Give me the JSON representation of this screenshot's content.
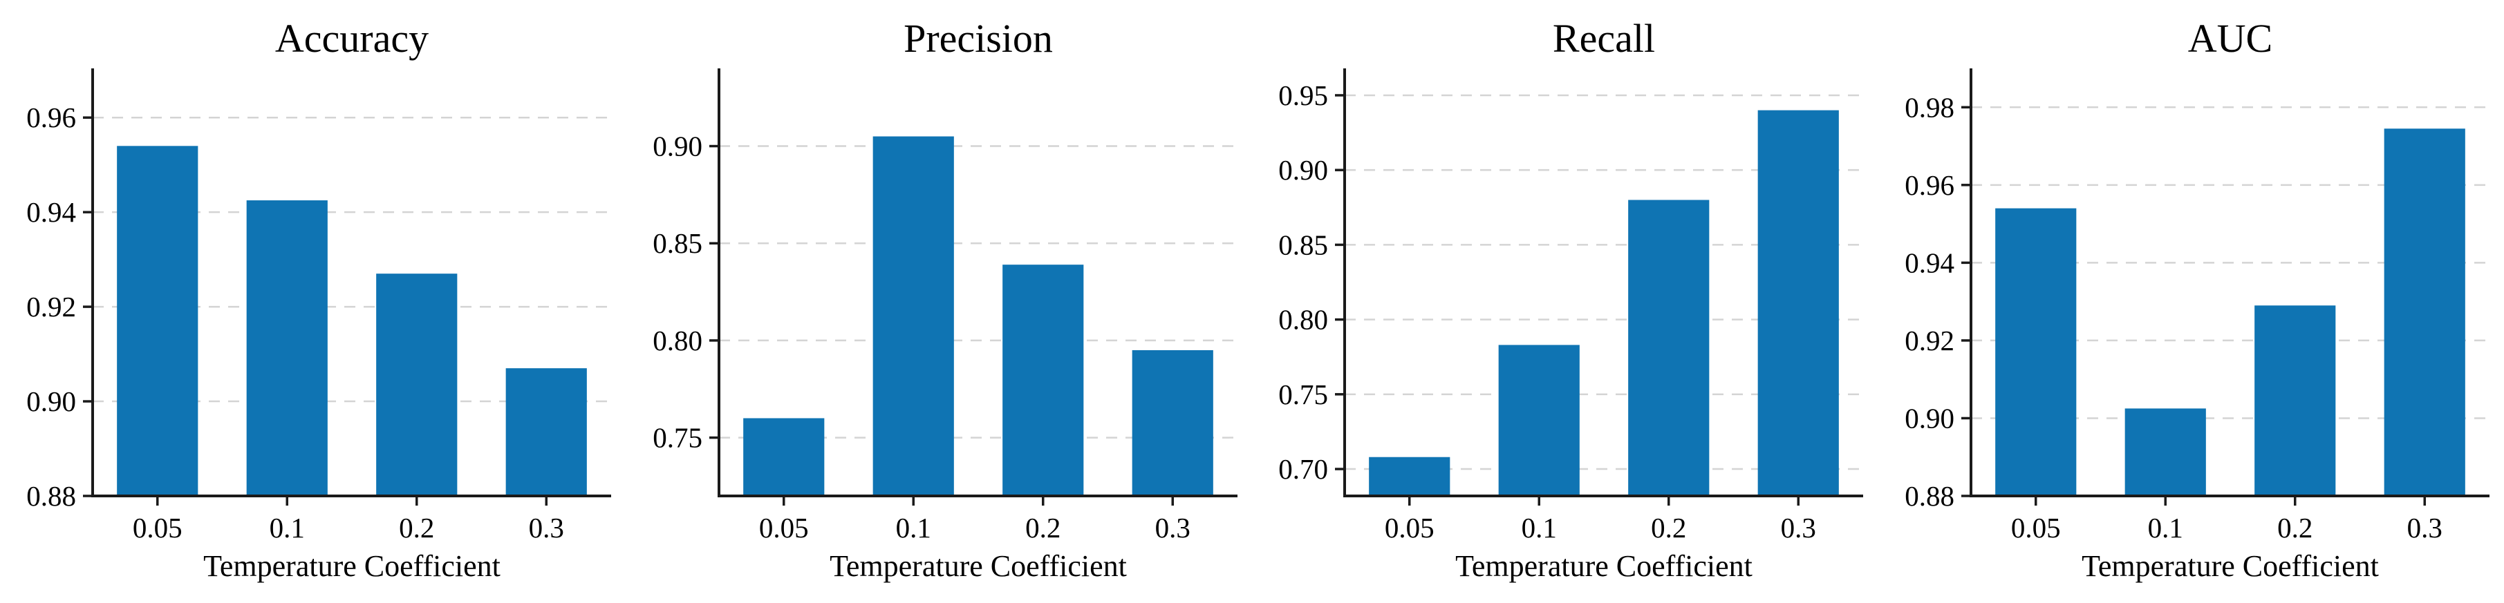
{
  "figure": {
    "background": "#ffffff",
    "axis_color": "#1a1a1a",
    "grid_color": "#d4d4d4",
    "bar_color": "#0f74b3",
    "text_color": "#000000"
  },
  "chart_data": [
    {
      "type": "bar",
      "title": "Accuracy",
      "xlabel": "Temperature Coefficient",
      "ylabel": "",
      "categories": [
        "0.05",
        "0.1",
        "0.2",
        "0.3"
      ],
      "values": [
        0.954,
        0.9425,
        0.927,
        0.907
      ],
      "ylim": [
        0.88,
        0.9704
      ],
      "yticks": [
        0.88,
        0.9,
        0.92,
        0.94,
        0.96
      ],
      "grid": true,
      "legend": "none"
    },
    {
      "type": "bar",
      "title": "Precision",
      "xlabel": "Temperature Coefficient",
      "ylabel": "",
      "categories": [
        "0.05",
        "0.1",
        "0.2",
        "0.3"
      ],
      "values": [
        0.76,
        0.905,
        0.839,
        0.795
      ],
      "ylim": [
        0.72,
        0.94
      ],
      "yticks": [
        0.75,
        0.8,
        0.85,
        0.9
      ],
      "grid": true,
      "legend": "none"
    },
    {
      "type": "bar",
      "title": "Recall",
      "xlabel": "Temperature Coefficient",
      "ylabel": "",
      "categories": [
        "0.05",
        "0.1",
        "0.2",
        "0.3"
      ],
      "values": [
        0.708,
        0.783,
        0.88,
        0.94
      ],
      "ylim": [
        0.682,
        0.968
      ],
      "yticks": [
        0.7,
        0.75,
        0.8,
        0.85,
        0.9,
        0.95
      ],
      "grid": true,
      "legend": "none"
    },
    {
      "type": "bar",
      "title": "AUC",
      "xlabel": "Temperature Coefficient",
      "ylabel": "",
      "categories": [
        "0.05",
        "0.1",
        "0.2",
        "0.3"
      ],
      "values": [
        0.954,
        0.9025,
        0.929,
        0.9745
      ],
      "ylim": [
        0.88,
        0.99
      ],
      "yticks": [
        0.88,
        0.9,
        0.92,
        0.94,
        0.96,
        0.98
      ],
      "grid": true,
      "legend": "none"
    }
  ]
}
